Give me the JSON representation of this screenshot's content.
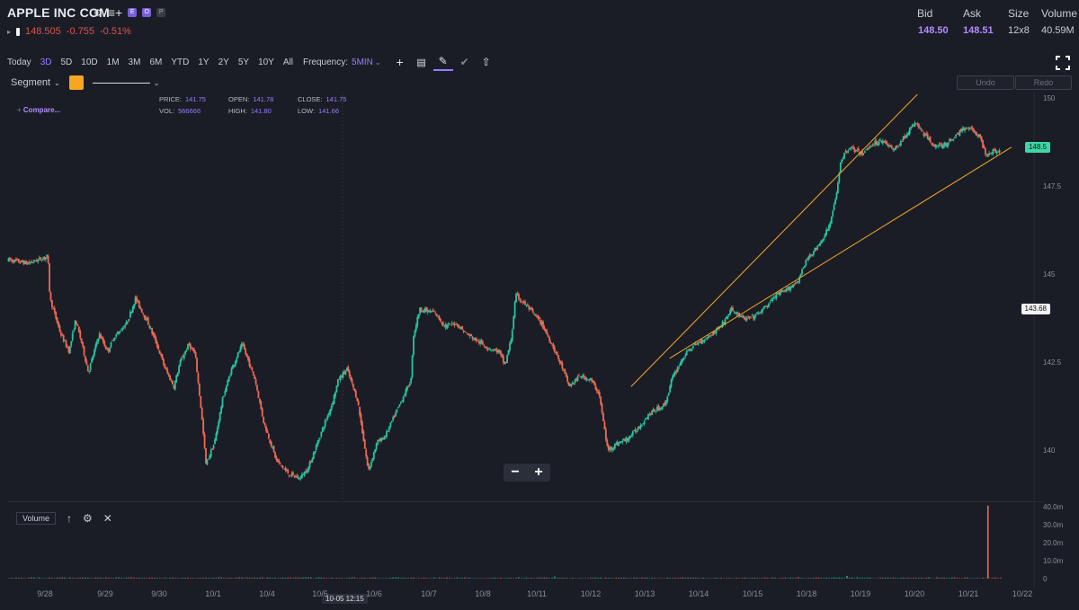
{
  "header": {
    "title": "APPLE INC COM",
    "chips": [
      "E",
      "O",
      "P"
    ],
    "last_price": "148.505",
    "change": "-0.755",
    "change_pct": "-0.51%"
  },
  "stats": {
    "headers": [
      "Bid",
      "Ask",
      "Size",
      "Volume"
    ],
    "values": [
      "148.50",
      "148.51",
      "12x8",
      "40.59M"
    ]
  },
  "toolbar": {
    "ranges": [
      "Today",
      "3D",
      "5D",
      "10D",
      "1M",
      "3M",
      "6M",
      "YTD",
      "1Y",
      "2Y",
      "5Y",
      "10Y",
      "All"
    ],
    "active_range": "3D",
    "frequency_label": "Frequency:",
    "frequency_value": "5MIN"
  },
  "drawing": {
    "tool": "Segment",
    "color": "#f5a623",
    "undo": "Undo",
    "redo": "Redo"
  },
  "ohlc": {
    "price_label": "PRICE:",
    "price": "141.75",
    "open_label": "OPEN:",
    "open": "141.78",
    "close_label": "CLOSE:",
    "close": "141.75",
    "vol_label": "VOL:",
    "vol": "566666",
    "high_label": "HIGH:",
    "high": "141.80",
    "low_label": "LOW:",
    "low": "141.66"
  },
  "compare": "Compare...",
  "price_tags": {
    "current": "148.5",
    "crosshair": "143.68"
  },
  "volume_panel": {
    "label": "Volume",
    "axis": [
      "40.0m",
      "30.0m",
      "20.0m",
      "10.0m",
      "0"
    ]
  },
  "crosshair_time": "10-05 12:15",
  "colors": {
    "up": "#26c6a0",
    "down": "#ef6a55",
    "accent": "#9b7bff",
    "trend": "#f5a623",
    "background": "#1a1d26"
  },
  "chart_data": {
    "type": "candlestick",
    "ylim": [
      139,
      150.1
    ],
    "yticks": [
      "150",
      "147.5",
      "145",
      "142.5",
      "140"
    ],
    "x_labels": [
      "9/28",
      "9/29",
      "9/30",
      "10/1",
      "10/4",
      "10/5",
      "10/6",
      "10/7",
      "10/8",
      "10/11",
      "10/12",
      "10/13",
      "10/14",
      "10/15",
      "10/18",
      "10/19",
      "10/20",
      "10/21",
      "10/22"
    ],
    "price_path": [
      [
        0,
        145.4
      ],
      [
        1,
        145.3
      ],
      [
        1.9,
        145.5
      ],
      [
        2,
        144.3
      ],
      [
        2.5,
        143.3
      ],
      [
        2.9,
        142.8
      ],
      [
        3.2,
        143.7
      ],
      [
        3.5,
        143.0
      ],
      [
        3.8,
        142.2
      ],
      [
        4.3,
        143.3
      ],
      [
        4.7,
        142.8
      ],
      [
        5,
        143.2
      ],
      [
        5.6,
        143.6
      ],
      [
        6,
        144.3
      ],
      [
        6.6,
        143.6
      ],
      [
        7,
        143.0
      ],
      [
        7.4,
        142.3
      ],
      [
        7.8,
        141.8
      ],
      [
        8.1,
        142.5
      ],
      [
        8.5,
        143.0
      ],
      [
        8.8,
        142.7
      ],
      [
        9.1,
        141.0
      ],
      [
        9.3,
        139.6
      ],
      [
        9.7,
        140.2
      ],
      [
        10.1,
        141.5
      ],
      [
        10.5,
        142.3
      ],
      [
        11.0,
        143.0
      ],
      [
        11.6,
        142.0
      ],
      [
        12.0,
        140.8
      ],
      [
        12.6,
        139.7
      ],
      [
        13.2,
        139.3
      ],
      [
        13.7,
        139.2
      ],
      [
        14.1,
        139.5
      ],
      [
        14.7,
        140.5
      ],
      [
        15.2,
        141.3
      ],
      [
        15.5,
        142.0
      ],
      [
        15.9,
        142.3
      ],
      [
        16.4,
        141.4
      ],
      [
        16.9,
        139.4
      ],
      [
        17.3,
        140.2
      ],
      [
        17.7,
        140.4
      ],
      [
        18.3,
        141.2
      ],
      [
        18.9,
        142.0
      ],
      [
        19.0,
        143.2
      ],
      [
        19.3,
        144.0
      ],
      [
        20.0,
        143.9
      ],
      [
        20.5,
        143.5
      ],
      [
        21.0,
        143.6
      ],
      [
        21.5,
        143.3
      ],
      [
        22.0,
        143.1
      ],
      [
        22.5,
        142.9
      ],
      [
        23.0,
        142.8
      ],
      [
        23.3,
        142.4
      ],
      [
        23.6,
        143.2
      ],
      [
        23.8,
        144.4
      ],
      [
        24.3,
        144.1
      ],
      [
        25.0,
        143.6
      ],
      [
        25.5,
        143.0
      ],
      [
        26.0,
        142.3
      ],
      [
        26.3,
        141.8
      ],
      [
        26.8,
        142.1
      ],
      [
        27.3,
        142.0
      ],
      [
        27.7,
        141.6
      ],
      [
        28.1,
        140.0
      ],
      [
        28.6,
        140.2
      ],
      [
        29.0,
        140.3
      ],
      [
        29.5,
        140.6
      ],
      [
        30.0,
        141.0
      ],
      [
        30.5,
        141.2
      ],
      [
        30.8,
        141.3
      ],
      [
        31.1,
        142.0
      ],
      [
        31.6,
        142.6
      ],
      [
        32.0,
        142.9
      ],
      [
        32.5,
        143.1
      ],
      [
        33.0,
        143.3
      ],
      [
        33.5,
        143.6
      ],
      [
        33.9,
        144.0
      ],
      [
        34.5,
        143.7
      ],
      [
        35.0,
        143.8
      ],
      [
        35.4,
        144.0
      ],
      [
        36.0,
        144.4
      ],
      [
        36.4,
        144.5
      ],
      [
        37.0,
        144.8
      ],
      [
        37.5,
        145.5
      ],
      [
        38.0,
        145.8
      ],
      [
        38.5,
        146.4
      ],
      [
        38.8,
        147.2
      ],
      [
        39.0,
        148.2
      ],
      [
        39.4,
        148.6
      ],
      [
        40.0,
        148.4
      ],
      [
        40.5,
        148.7
      ],
      [
        41.0,
        148.8
      ],
      [
        41.5,
        148.5
      ],
      [
        42.0,
        148.9
      ],
      [
        42.5,
        149.3
      ],
      [
        43.0,
        148.9
      ],
      [
        43.5,
        148.6
      ],
      [
        44.0,
        148.7
      ],
      [
        44.5,
        149.0
      ],
      [
        45.0,
        149.2
      ],
      [
        45.5,
        148.9
      ],
      [
        45.8,
        148.4
      ],
      [
        46.1,
        148.5
      ],
      [
        46.5,
        148.5
      ]
    ],
    "trendlines": [
      {
        "from": [
          29.2,
          141.8
        ],
        "to": [
          42.6,
          150.1
        ]
      },
      {
        "from": [
          31.0,
          142.6
        ],
        "to": [
          47.0,
          148.6
        ]
      }
    ],
    "volume_spike": {
      "x": 45.9,
      "value": 40.59,
      "unit": "m"
    },
    "volume_ylim": [
      0,
      40
    ]
  }
}
